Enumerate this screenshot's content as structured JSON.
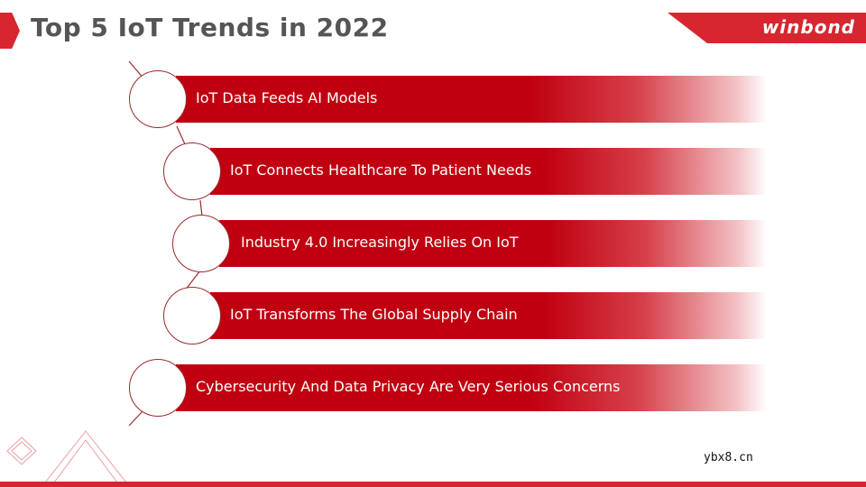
{
  "header": {
    "title": "Top 5 IoT Trends in 2022",
    "logo": "winbond"
  },
  "trends": [
    {
      "label": "IoT Data Feeds AI Models"
    },
    {
      "label": "IoT Connects Healthcare To Patient Needs"
    },
    {
      "label": "Industry 4.0 Increasingly Relies On IoT"
    },
    {
      "label": "IoT Transforms The Global Supply Chain"
    },
    {
      "label": "Cybersecurity And Data Privacy Are Very Serious Concerns"
    }
  ],
  "footer": {
    "watermark": "ybx8.cn"
  },
  "colors": {
    "accent": "#d7262f",
    "bar": "#c00010",
    "title": "#555555"
  }
}
